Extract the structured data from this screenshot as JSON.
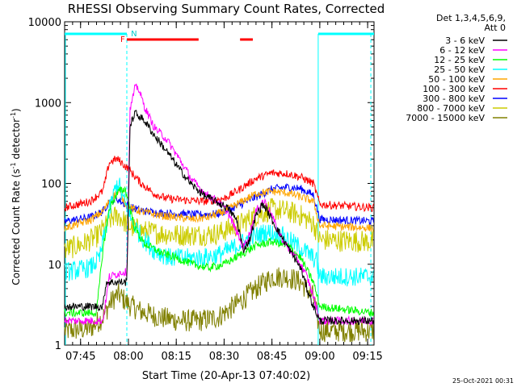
{
  "chart_data": {
    "type": "line",
    "title": "RHESSI Observing Summary Count Rates, Corrected",
    "xlabel": "Start Time (20-Apr-13 07:40:02)",
    "ylabel": "Corrected Count Rate",
    "ylabel_unit_base": "(s",
    "ylabel_unit_exp": "-1",
    "ylabel_unit_rest": " detector",
    "ylabel_unit_exp2": "-1",
    "ylabel_unit_close": ")",
    "y_scale": "log",
    "ylim": [
      1,
      10000
    ],
    "xlim_minutes": [
      0,
      97
    ],
    "x_ticks": [
      {
        "label": "07:45",
        "minute": 5
      },
      {
        "label": "08:00",
        "minute": 20
      },
      {
        "label": "08:15",
        "minute": 35
      },
      {
        "label": "08:30",
        "minute": 50
      },
      {
        "label": "08:45",
        "minute": 65
      },
      {
        "label": "09:00",
        "minute": 80
      },
      {
        "label": "09:15",
        "minute": 95
      }
    ],
    "y_ticks": [
      {
        "label": "1",
        "value": 1
      },
      {
        "label": "10",
        "value": 10
      },
      {
        "label": "100",
        "value": 100
      },
      {
        "label": "1000",
        "value": 1000
      },
      {
        "label": "10000",
        "value": 10000
      }
    ],
    "legend_header": [
      "Det 1,3,4,5,6,9,",
      "Att 0"
    ],
    "legend_placement": "top-right outside",
    "timestamp": "25-Oct-2021 00:31",
    "markers": {
      "flag_F": {
        "label": "F",
        "minute": 19.5
      },
      "flag_N": {
        "label": "N",
        "minute": 20.3
      },
      "eclipse_start_minute": 79.5,
      "eclipse_end_minute": 97,
      "sun_vlines_minutes": [
        19.5,
        96
      ],
      "flare_bars_minutes": [
        [
          19.5,
          42
        ],
        [
          55,
          59
        ]
      ]
    },
    "series": [
      {
        "name": "3 - 6 keV",
        "color": "#000000",
        "points": [
          [
            0,
            3
          ],
          [
            12,
            3
          ],
          [
            13,
            6
          ],
          [
            18,
            6
          ],
          [
            19.5,
            6
          ],
          [
            20.5,
            500
          ],
          [
            22,
            750
          ],
          [
            25,
            600
          ],
          [
            28,
            400
          ],
          [
            32,
            250
          ],
          [
            36,
            150
          ],
          [
            40,
            95
          ],
          [
            44,
            70
          ],
          [
            48,
            58
          ],
          [
            51,
            50
          ],
          [
            54,
            35
          ],
          [
            56,
            15
          ],
          [
            58,
            20
          ],
          [
            60,
            40
          ],
          [
            62,
            55
          ],
          [
            63,
            50
          ],
          [
            64,
            42
          ],
          [
            66,
            30
          ],
          [
            68,
            22
          ],
          [
            71,
            14
          ],
          [
            74,
            9
          ],
          [
            76,
            5
          ],
          [
            78,
            3
          ],
          [
            80,
            2
          ],
          [
            97,
            2
          ]
        ]
      },
      {
        "name": "6 - 12 keV",
        "color": "#ff00ff",
        "points": [
          [
            0,
            2
          ],
          [
            12,
            2
          ],
          [
            14,
            7
          ],
          [
            18,
            8
          ],
          [
            19.5,
            8
          ],
          [
            20.5,
            800
          ],
          [
            22,
            1500
          ],
          [
            23,
            1550
          ],
          [
            25,
            900
          ],
          [
            28,
            500
          ],
          [
            32,
            350
          ],
          [
            36,
            200
          ],
          [
            40,
            110
          ],
          [
            44,
            75
          ],
          [
            48,
            60
          ],
          [
            51,
            45
          ],
          [
            54,
            25
          ],
          [
            56,
            16
          ],
          [
            58,
            24
          ],
          [
            60,
            45
          ],
          [
            62,
            60
          ],
          [
            63,
            58
          ],
          [
            65,
            40
          ],
          [
            67,
            25
          ],
          [
            70,
            16
          ],
          [
            74,
            10
          ],
          [
            76,
            7
          ],
          [
            78,
            4
          ],
          [
            80,
            2
          ],
          [
            97,
            2
          ]
        ]
      },
      {
        "name": "12 - 25 keV",
        "color": "#00ff00",
        "points": [
          [
            0,
            2.5
          ],
          [
            10,
            2.5
          ],
          [
            12,
            15
          ],
          [
            14,
            50
          ],
          [
            17,
            80
          ],
          [
            19,
            85
          ],
          [
            20,
            60
          ],
          [
            22,
            28
          ],
          [
            25,
            18
          ],
          [
            30,
            14
          ],
          [
            35,
            12
          ],
          [
            40,
            10
          ],
          [
            45,
            9
          ],
          [
            50,
            10
          ],
          [
            55,
            13
          ],
          [
            60,
            17
          ],
          [
            65,
            19
          ],
          [
            70,
            17
          ],
          [
            74,
            12
          ],
          [
            78,
            6
          ],
          [
            80,
            3
          ],
          [
            97,
            2.5
          ]
        ]
      },
      {
        "name": "25 - 50 keV",
        "color": "#00ffff",
        "points": [
          [
            0,
            8
          ],
          [
            8,
            9
          ],
          [
            11,
            12
          ],
          [
            14,
            45
          ],
          [
            16,
            90
          ],
          [
            17,
            100
          ],
          [
            18,
            70
          ],
          [
            21,
            35
          ],
          [
            24,
            22
          ],
          [
            28,
            15
          ],
          [
            33,
            12
          ],
          [
            38,
            12
          ],
          [
            43,
            12
          ],
          [
            48,
            13
          ],
          [
            53,
            16
          ],
          [
            58,
            21
          ],
          [
            63,
            25
          ],
          [
            68,
            23
          ],
          [
            72,
            18
          ],
          [
            76,
            14
          ],
          [
            79,
            11
          ],
          [
            80,
            7
          ],
          [
            97,
            7
          ]
        ]
      },
      {
        "name": "50 - 100 keV",
        "color": "#ffa500",
        "points": [
          [
            0,
            28
          ],
          [
            8,
            35
          ],
          [
            12,
            45
          ],
          [
            14,
            60
          ],
          [
            16,
            75
          ],
          [
            17,
            78
          ],
          [
            20,
            50
          ],
          [
            24,
            45
          ],
          [
            30,
            40
          ],
          [
            35,
            38
          ],
          [
            40,
            36
          ],
          [
            45,
            38
          ],
          [
            50,
            45
          ],
          [
            55,
            58
          ],
          [
            60,
            75
          ],
          [
            65,
            80
          ],
          [
            70,
            76
          ],
          [
            74,
            68
          ],
          [
            78,
            60
          ],
          [
            80,
            30
          ],
          [
            97,
            28
          ]
        ]
      },
      {
        "name": "100 - 300 keV",
        "color": "#ff0000",
        "points": [
          [
            0,
            50
          ],
          [
            8,
            60
          ],
          [
            12,
            80
          ],
          [
            14,
            180
          ],
          [
            16,
            200
          ],
          [
            17,
            195
          ],
          [
            20,
            150
          ],
          [
            24,
            100
          ],
          [
            28,
            75
          ],
          [
            32,
            65
          ],
          [
            38,
            62
          ],
          [
            44,
            60
          ],
          [
            50,
            65
          ],
          [
            55,
            85
          ],
          [
            60,
            115
          ],
          [
            65,
            135
          ],
          [
            70,
            132
          ],
          [
            74,
            120
          ],
          [
            78,
            100
          ],
          [
            80,
            55
          ],
          [
            97,
            50
          ]
        ]
      },
      {
        "name": "300 - 800 keV",
        "color": "#0000ff",
        "points": [
          [
            0,
            34
          ],
          [
            8,
            38
          ],
          [
            12,
            45
          ],
          [
            14,
            60
          ],
          [
            16,
            65
          ],
          [
            17,
            62
          ],
          [
            20,
            52
          ],
          [
            24,
            46
          ],
          [
            30,
            43
          ],
          [
            36,
            42
          ],
          [
            42,
            41
          ],
          [
            48,
            42
          ],
          [
            54,
            52
          ],
          [
            60,
            68
          ],
          [
            65,
            85
          ],
          [
            70,
            90
          ],
          [
            74,
            86
          ],
          [
            78,
            72
          ],
          [
            80,
            36
          ],
          [
            97,
            34
          ]
        ]
      },
      {
        "name": "800 - 7000 keV",
        "color": "#cccc00",
        "points": [
          [
            0,
            15
          ],
          [
            6,
            18
          ],
          [
            10,
            22
          ],
          [
            13,
            30
          ],
          [
            15,
            38
          ],
          [
            17,
            40
          ],
          [
            20,
            30
          ],
          [
            24,
            26
          ],
          [
            30,
            24
          ],
          [
            36,
            23
          ],
          [
            42,
            23
          ],
          [
            48,
            24
          ],
          [
            54,
            30
          ],
          [
            60,
            40
          ],
          [
            65,
            48
          ],
          [
            70,
            45
          ],
          [
            74,
            40
          ],
          [
            78,
            32
          ],
          [
            80,
            20
          ],
          [
            97,
            19
          ]
        ]
      },
      {
        "name": "7000 - 15000 keV",
        "color": "#808000",
        "points": [
          [
            0,
            1.5
          ],
          [
            8,
            1.6
          ],
          [
            12,
            2.2
          ],
          [
            14,
            3.2
          ],
          [
            16,
            4
          ],
          [
            17,
            4.2
          ],
          [
            20,
            3.2
          ],
          [
            24,
            2.6
          ],
          [
            30,
            2.2
          ],
          [
            36,
            2
          ],
          [
            42,
            2
          ],
          [
            48,
            2.2
          ],
          [
            54,
            3.2
          ],
          [
            60,
            5
          ],
          [
            65,
            7
          ],
          [
            70,
            7
          ],
          [
            74,
            6
          ],
          [
            78,
            4
          ],
          [
            80,
            1.5
          ],
          [
            97,
            1.5
          ]
        ]
      }
    ]
  }
}
